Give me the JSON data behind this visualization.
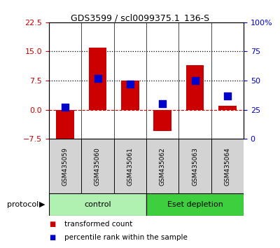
{
  "title": "GDS3599 / scl0099375.1_136-S",
  "samples": [
    "GSM435059",
    "GSM435060",
    "GSM435061",
    "GSM435062",
    "GSM435063",
    "GSM435064"
  ],
  "transformed_count": [
    -8.0,
    16.0,
    7.5,
    -5.5,
    11.5,
    1.0
  ],
  "percentile_rank": [
    27.0,
    52.0,
    47.0,
    30.0,
    50.0,
    37.0
  ],
  "left_ylim": [
    -7.5,
    22.5
  ],
  "left_yticks": [
    -7.5,
    0,
    7.5,
    15,
    22.5
  ],
  "right_ylim": [
    0,
    100
  ],
  "right_yticks": [
    0,
    25,
    50,
    75,
    100
  ],
  "hline_y": [
    7.5,
    15.0
  ],
  "zero_line_color": "#cc0000",
  "bar_color": "#cc0000",
  "dot_color": "#0000cc",
  "bar_width": 0.55,
  "dot_size": 45,
  "groups": [
    {
      "label": "control",
      "samples": [
        0,
        1,
        2
      ],
      "color": "#b0f0b0"
    },
    {
      "label": "Eset depletion",
      "samples": [
        3,
        4,
        5
      ],
      "color": "#3ecf3e"
    }
  ],
  "protocol_label": "protocol",
  "legend_items": [
    {
      "color": "#cc0000",
      "label": "transformed count"
    },
    {
      "color": "#0000cc",
      "label": "percentile rank within the sample"
    }
  ],
  "left_tick_color": "#cc0000",
  "right_tick_color": "#0000cc",
  "background_color": "#ffffff",
  "plot_bg_color": "#ffffff",
  "title_fontsize": 9,
  "tick_fontsize": 8,
  "label_fontsize": 6.5,
  "legend_fontsize": 7.5,
  "group_fontsize": 8
}
